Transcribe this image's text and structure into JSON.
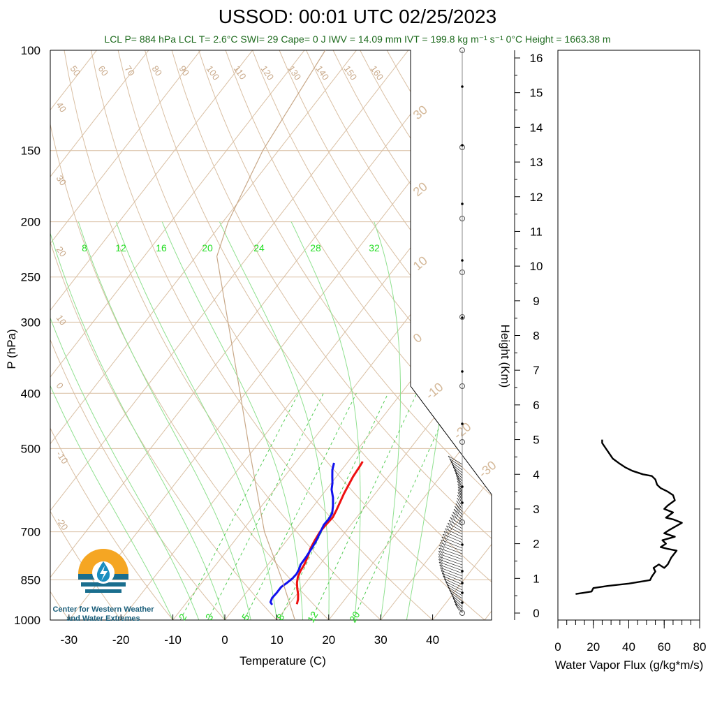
{
  "header": {
    "title": "USSOD: 00:01 UTC 02/25/2023",
    "subtitle": "LCL P= 884 hPa  LCL T= 2.6°C  SWI= 29  Cape= 0 J  IWV = 14.09 mm  IVT = 199.8 kg m⁻¹ s⁻¹  0°C Height = 1663.38 m"
  },
  "logo": {
    "line1": "Center for Western Weather",
    "line2": "and Water Extremes"
  },
  "colors": {
    "temperature": "#ee1111",
    "dewpoint": "#1111ee",
    "isotherm": "#d9bfa3",
    "dry_adiabat": "#d9bfa3",
    "moist_adiabat": "#8fe08f",
    "mixing_ratio": "#55cc55",
    "parcel": "#c8a888",
    "flux": "#000000"
  },
  "chart_data": [
    {
      "type": "line",
      "name": "skew-t",
      "xlabel": "Temperature (C)",
      "ylabel": "P (hPa)",
      "xlim": [
        -34,
        52
      ],
      "ylim": [
        1000,
        100
      ],
      "yscale": "log",
      "x_ticks": [
        -30,
        -20,
        -10,
        0,
        10,
        20,
        30,
        40
      ],
      "y_ticks": [
        100,
        150,
        200,
        250,
        300,
        400,
        500,
        700,
        850,
        1000
      ],
      "height_axis": {
        "label": "Height (Km)",
        "ticks": [
          0,
          1,
          2,
          3,
          4,
          5,
          6,
          7,
          8,
          9,
          10,
          11,
          12,
          13,
          14,
          15,
          16
        ]
      },
      "isotherm_labels": [
        {
          "p": 100,
          "t": 50
        },
        {
          "p": 100,
          "t": 60
        },
        {
          "p": 100,
          "t": 70
        },
        {
          "p": 100,
          "t": 80
        },
        {
          "p": 100,
          "t": 90
        },
        {
          "p": 100,
          "t": 100
        },
        {
          "p": 100,
          "t": 110
        },
        {
          "p": 100,
          "t": 120
        },
        {
          "p": 100,
          "t": 130
        },
        {
          "p": 100,
          "t": 140
        },
        {
          "p": 100,
          "t": 150
        },
        {
          "p": 100,
          "t": 160
        }
      ],
      "left_labels": [
        40,
        30,
        20,
        10,
        0,
        -10,
        -20
      ],
      "right_labels": [
        30,
        20,
        10,
        0,
        -10,
        -20,
        -30
      ],
      "mixing_ratio_top_labels": [
        8,
        12,
        16,
        20,
        24,
        28,
        32
      ],
      "mixing_ratio_bottom_labels": [
        2,
        3,
        5,
        8,
        12,
        20
      ],
      "series": [
        {
          "name": "temperature",
          "points": [
            {
              "p": 938,
              "t": 11.5
            },
            {
              "p": 920,
              "t": 11.0
            },
            {
              "p": 900,
              "t": 10.2
            },
            {
              "p": 880,
              "t": 9.2
            },
            {
              "p": 860,
              "t": 8.3
            },
            {
              "p": 840,
              "t": 7.6
            },
            {
              "p": 820,
              "t": 7.2
            },
            {
              "p": 800,
              "t": 7.0
            },
            {
              "p": 775,
              "t": 6.5
            },
            {
              "p": 750,
              "t": 5.8
            },
            {
              "p": 725,
              "t": 5.4
            },
            {
              "p": 700,
              "t": 5.1
            },
            {
              "p": 680,
              "t": 5.2
            },
            {
              "p": 660,
              "t": 5.4
            },
            {
              "p": 640,
              "t": 5.0
            },
            {
              "p": 620,
              "t": 4.5
            },
            {
              "p": 600,
              "t": 4.0
            },
            {
              "p": 580,
              "t": 3.6
            },
            {
              "p": 560,
              "t": 3.2
            },
            {
              "p": 540,
              "t": 3.0
            },
            {
              "p": 527,
              "t": 2.8
            }
          ]
        },
        {
          "name": "dewpoint",
          "points": [
            {
              "p": 940,
              "t": 6.8
            },
            {
              "p": 930,
              "t": 6.1
            },
            {
              "p": 915,
              "t": 5.8
            },
            {
              "p": 895,
              "t": 5.9
            },
            {
              "p": 875,
              "t": 5.9
            },
            {
              "p": 860,
              "t": 6.4
            },
            {
              "p": 845,
              "t": 6.8
            },
            {
              "p": 830,
              "t": 6.9
            },
            {
              "p": 815,
              "t": 6.7
            },
            {
              "p": 800,
              "t": 6.3
            },
            {
              "p": 775,
              "t": 6.2
            },
            {
              "p": 750,
              "t": 6.0
            },
            {
              "p": 725,
              "t": 5.7
            },
            {
              "p": 700,
              "t": 5.2
            },
            {
              "p": 680,
              "t": 4.8
            },
            {
              "p": 665,
              "t": 4.9
            },
            {
              "p": 650,
              "t": 4.7
            },
            {
              "p": 630,
              "t": 3.7
            },
            {
              "p": 610,
              "t": 2.5
            },
            {
              "p": 590,
              "t": 1.0
            },
            {
              "p": 575,
              "t": 0.2
            },
            {
              "p": 560,
              "t": -0.8
            },
            {
              "p": 545,
              "t": -1.8
            },
            {
              "p": 530,
              "t": -2.5
            }
          ]
        },
        {
          "name": "parcel",
          "points": [
            {
              "p": 1000,
              "t": 13.5
            },
            {
              "p": 850,
              "t": 5.0
            },
            {
              "p": 700,
              "t": -5.6
            },
            {
              "p": 500,
              "t": -21
            },
            {
              "p": 400,
              "t": -31
            },
            {
              "p": 300,
              "t": -44
            },
            {
              "p": 230,
              "t": -56
            },
            {
              "p": 200,
              "t": -59
            },
            {
              "p": 150,
              "t": -63
            },
            {
              "p": 100,
              "t": -66
            }
          ]
        }
      ]
    },
    {
      "type": "line",
      "name": "water-vapor-flux",
      "xlabel": "Water Vapor Flux (g/kg*m/s)",
      "ylabel": "",
      "xlim": [
        0,
        80
      ],
      "ylim": [
        0,
        16
      ],
      "x_ticks": [
        0,
        20,
        40,
        60,
        80
      ],
      "series": [
        {
          "name": "flux",
          "points": [
            {
              "x": 10,
              "h": 0.55
            },
            {
              "x": 14,
              "h": 0.58
            },
            {
              "x": 19,
              "h": 0.62
            },
            {
              "x": 20,
              "h": 0.72
            },
            {
              "x": 28,
              "h": 0.78
            },
            {
              "x": 40,
              "h": 0.85
            },
            {
              "x": 52,
              "h": 0.95
            },
            {
              "x": 53,
              "h": 1.05
            },
            {
              "x": 55,
              "h": 1.2
            },
            {
              "x": 54,
              "h": 1.3
            },
            {
              "x": 57,
              "h": 1.4
            },
            {
              "x": 60,
              "h": 1.3
            },
            {
              "x": 62,
              "h": 1.4
            },
            {
              "x": 64,
              "h": 1.6
            },
            {
              "x": 67,
              "h": 1.8
            },
            {
              "x": 62,
              "h": 1.85
            },
            {
              "x": 58,
              "h": 1.9
            },
            {
              "x": 61,
              "h": 2.0
            },
            {
              "x": 59,
              "h": 2.1
            },
            {
              "x": 66,
              "h": 2.2
            },
            {
              "x": 60,
              "h": 2.3
            },
            {
              "x": 63,
              "h": 2.4
            },
            {
              "x": 70,
              "h": 2.6
            },
            {
              "x": 65,
              "h": 2.7
            },
            {
              "x": 61,
              "h": 2.75
            },
            {
              "x": 65,
              "h": 2.9
            },
            {
              "x": 60,
              "h": 3.0
            },
            {
              "x": 62,
              "h": 3.1
            },
            {
              "x": 66,
              "h": 3.25
            },
            {
              "x": 65,
              "h": 3.4
            },
            {
              "x": 62,
              "h": 3.5
            },
            {
              "x": 58,
              "h": 3.6
            },
            {
              "x": 56,
              "h": 3.7
            },
            {
              "x": 55,
              "h": 3.85
            },
            {
              "x": 53,
              "h": 3.95
            },
            {
              "x": 48,
              "h": 4.0
            },
            {
              "x": 42,
              "h": 4.1
            },
            {
              "x": 38,
              "h": 4.2
            },
            {
              "x": 35,
              "h": 4.3
            },
            {
              "x": 31,
              "h": 4.45
            },
            {
              "x": 29,
              "h": 4.6
            },
            {
              "x": 27,
              "h": 4.75
            },
            {
              "x": 25,
              "h": 4.9
            },
            {
              "x": 25,
              "h": 5.0
            }
          ]
        }
      ]
    }
  ]
}
